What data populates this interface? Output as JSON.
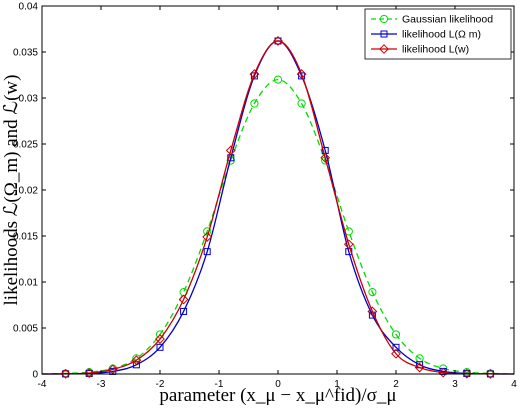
{
  "chart_data": {
    "type": "line",
    "xlabel": "parameter (x_μ − x_μ^fid)/σ_μ",
    "ylabel": "likelihoods ℒ(Ω_m) and ℒ(w)",
    "xlim": [
      -4,
      4
    ],
    "ylim": [
      0,
      0.04
    ],
    "xticks": [
      "-4",
      "-3",
      "-2",
      "-1",
      "0",
      "1",
      "2",
      "3",
      "4"
    ],
    "yticks": [
      "0",
      "0.005",
      "0.01",
      "0.015",
      "0.02",
      "0.025",
      "0.03",
      "0.035",
      "0.04"
    ],
    "grid": false,
    "legend_position": "top-right",
    "series": [
      {
        "name": "Gaussian likelihood",
        "color": "#00dd00",
        "line_style": "dashed",
        "marker": "circle",
        "x": [
          -3.6,
          -3.2,
          -2.8,
          -2.4,
          -2.0,
          -1.6,
          -1.2,
          -0.8,
          -0.4,
          0.0,
          0.4,
          0.8,
          1.2,
          1.6,
          2.0,
          2.4,
          2.8,
          3.2,
          3.6
        ],
        "y": [
          6e-05,
          0.0002,
          0.0006,
          0.0017,
          0.0043,
          0.0089,
          0.0155,
          0.0232,
          0.0294,
          0.032,
          0.0294,
          0.0232,
          0.0155,
          0.0089,
          0.0043,
          0.0017,
          0.0006,
          0.0002,
          6e-05
        ]
      },
      {
        "name": "likelihood L(Ω m)",
        "color": "#0000cc",
        "line_style": "solid",
        "marker": "square",
        "x": [
          -3.6,
          -3.2,
          -2.8,
          -2.4,
          -2.0,
          -1.6,
          -1.2,
          -0.8,
          -0.4,
          0.0,
          0.4,
          0.8,
          1.2,
          1.6,
          2.0,
          2.4,
          2.8,
          3.2,
          3.6
        ],
        "y": [
          1e-05,
          6e-05,
          0.00028,
          0.001,
          0.0029,
          0.0068,
          0.0133,
          0.0235,
          0.0324,
          0.0362,
          0.0324,
          0.0243,
          0.0133,
          0.0064,
          0.0029,
          0.001,
          0.00028,
          6e-05,
          1e-05
        ]
      },
      {
        "name": "likelihood L(w)",
        "color": "#cc0000",
        "line_style": "solid",
        "marker": "diamond",
        "x": [
          -3.6,
          -3.2,
          -2.8,
          -2.4,
          -2.0,
          -1.6,
          -1.2,
          -0.8,
          -0.4,
          0.0,
          0.4,
          0.8,
          1.2,
          1.6,
          2.0,
          2.4,
          2.8,
          3.2,
          3.6
        ],
        "y": [
          2e-05,
          0.0001,
          0.0005,
          0.0015,
          0.0038,
          0.0081,
          0.0149,
          0.0243,
          0.0326,
          0.0362,
          0.0326,
          0.0235,
          0.0141,
          0.0068,
          0.0022,
          0.0007,
          0.00015,
          3e-05,
          1e-05
        ]
      }
    ]
  }
}
